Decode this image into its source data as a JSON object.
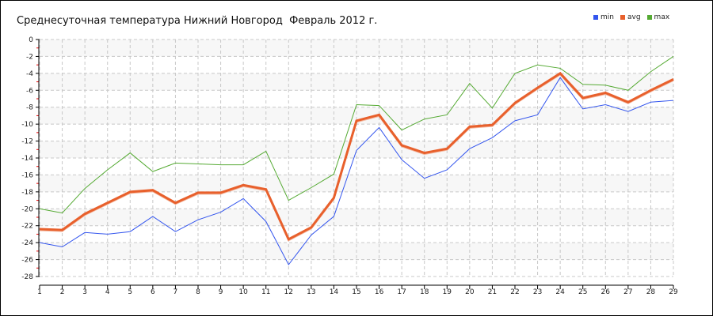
{
  "chart_data": {
    "type": "line",
    "title": "Среднесуточная температура Нижний Новгород  Февраль 2012 г.",
    "xlabel": "",
    "ylabel": "",
    "x": [
      1,
      2,
      3,
      4,
      5,
      6,
      7,
      8,
      9,
      10,
      11,
      12,
      13,
      14,
      15,
      16,
      17,
      18,
      19,
      20,
      21,
      22,
      23,
      24,
      25,
      26,
      27,
      28,
      29
    ],
    "ylim": [
      -28,
      0
    ],
    "yticks": [
      0,
      -2,
      -4,
      -6,
      -8,
      -10,
      -12,
      -14,
      -16,
      -18,
      -20,
      -22,
      -24,
      -26,
      -28
    ],
    "grid": true,
    "legend_position": "top-right",
    "series": [
      {
        "name": "min",
        "color": "#3355ee",
        "values": [
          -24.0,
          -24.5,
          -22.8,
          -23.0,
          -22.7,
          -20.9,
          -22.7,
          -21.3,
          -20.4,
          -18.8,
          -21.5,
          -26.6,
          -23.1,
          -20.9,
          -13.1,
          -10.4,
          -14.2,
          -16.4,
          -15.4,
          -12.9,
          -11.6,
          -9.6,
          -8.9,
          -4.5,
          -8.2,
          -7.7,
          -8.5,
          -7.4,
          -7.2
        ]
      },
      {
        "name": "avg",
        "color": "#e8602c",
        "values": [
          -22.4,
          -22.5,
          -20.6,
          -19.3,
          -18.0,
          -17.8,
          -19.3,
          -18.1,
          -18.1,
          -17.2,
          -17.7,
          -23.6,
          -22.2,
          -18.7,
          -9.6,
          -8.9,
          -12.5,
          -13.4,
          -12.9,
          -10.3,
          -10.1,
          -7.5,
          -5.7,
          -4.0,
          -6.9,
          -6.3,
          -7.4,
          -6.0,
          -4.7
        ]
      },
      {
        "name": "max",
        "color": "#55aa33",
        "values": [
          -20.0,
          -20.5,
          -17.6,
          -15.4,
          -13.4,
          -15.6,
          -14.6,
          -14.7,
          -14.8,
          -14.8,
          -13.2,
          -19.0,
          -17.5,
          -15.9,
          -7.7,
          -7.8,
          -10.7,
          -9.4,
          -8.9,
          -5.2,
          -8.1,
          -4.0,
          -3.0,
          -3.4,
          -5.3,
          -5.4,
          -6.0,
          -3.8,
          -2.0
        ]
      }
    ]
  }
}
